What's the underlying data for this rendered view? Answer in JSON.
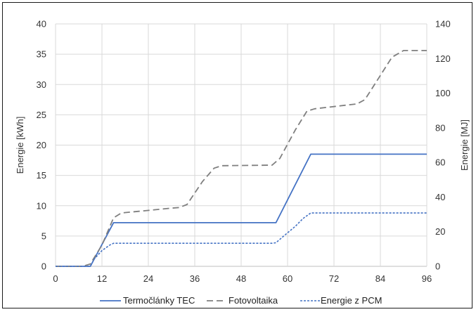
{
  "chart_data": {
    "type": "line",
    "xlabel": "",
    "ylabel": "Energie [kWh]",
    "y2label": "Energie [MJ]",
    "xlim": [
      0,
      96
    ],
    "ylim": [
      0,
      40
    ],
    "y2lim": [
      0,
      140
    ],
    "xticks": [
      0,
      12,
      24,
      36,
      48,
      60,
      72,
      84,
      96
    ],
    "yticks": [
      0,
      5,
      10,
      15,
      20,
      25,
      30,
      35,
      40
    ],
    "y2ticks": [
      0,
      20,
      40,
      60,
      80,
      100,
      120,
      140
    ],
    "grid": "horizontal",
    "legend_position": "bottom",
    "series": [
      {
        "name": "Termočlánky TEC",
        "color": "#4472C4",
        "dash": "solid",
        "x": [
          0,
          9,
          15,
          57,
          66,
          96
        ],
        "y": [
          0,
          0,
          7.2,
          7.2,
          18.5,
          18.5
        ]
      },
      {
        "name": "Fotovoltaika",
        "color": "#7F7F7F",
        "dash": "dashed",
        "x": [
          0,
          7,
          9,
          12,
          15,
          17,
          30,
          32,
          34,
          38,
          41,
          43,
          56,
          58,
          62,
          65,
          67,
          78,
          80,
          84,
          87,
          90,
          96
        ],
        "y": [
          0,
          0,
          0.4,
          3.5,
          8.0,
          8.8,
          9.6,
          9.7,
          10.2,
          14.0,
          16.2,
          16.6,
          16.7,
          17.8,
          22.5,
          25.6,
          26.0,
          26.8,
          27.5,
          31.5,
          34.5,
          35.6,
          35.6
        ]
      },
      {
        "name": "Energie z PCM",
        "color": "#4472C4",
        "dash": "dotted",
        "x": [
          0,
          9,
          10,
          12,
          14,
          15,
          56,
          57,
          59,
          62,
          64,
          66,
          96
        ],
        "y": [
          0,
          0,
          1.2,
          2.6,
          3.5,
          3.8,
          3.8,
          3.9,
          5.0,
          6.6,
          7.9,
          8.8,
          8.8
        ]
      }
    ]
  }
}
